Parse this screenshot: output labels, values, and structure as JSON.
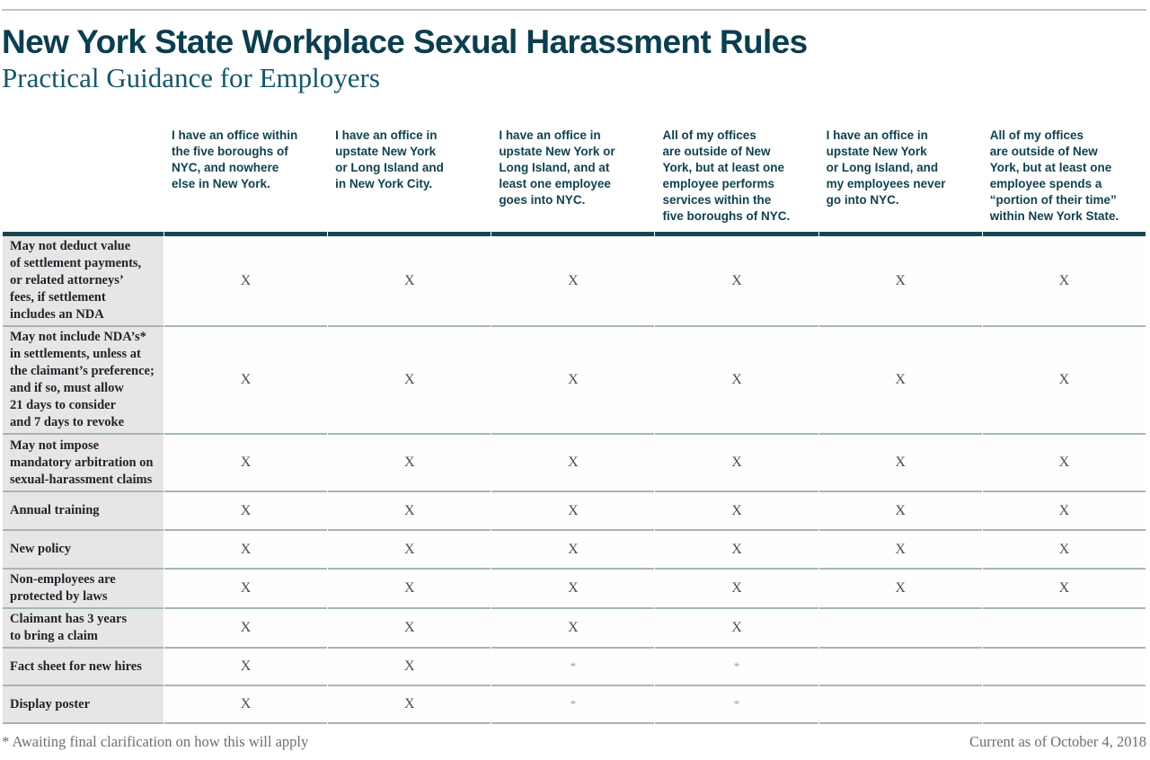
{
  "colors": {
    "teal_title": "#0b3e4e",
    "teal_subtitle": "#16566a",
    "teal_header": "#11414f",
    "teal_bar": "#174650",
    "label_text": "#22222c",
    "x_mark": "#4c4c54",
    "asterisk": "#9c9ca2",
    "row_line": "#a4b7b0",
    "label_bg": "#e7e6e6",
    "top_line": "#c4c4c4",
    "footnote": "#6f6f73"
  },
  "chart_data": {
    "type": "table",
    "title": "New York State Workplace Sexual Harassment Rules",
    "subtitle": "Practical Guidance for Employers",
    "columns": [
      "I have an office within\nthe five boroughs of\nNYC, and nowhere\nelse in New York.",
      "I have an office in\nupstate New York\nor Long Island and\nin New York City.",
      "I have an office in\nupstate New York or\nLong Island, and at\nleast one employee\ngoes into NYC.",
      "All of my offices\nare outside of New\nYork, but at least one\nemployee performs\nservices within the\nfive boroughs of NYC.",
      "I have an office in\nupstate New York\nor Long Island, and\nmy employees never\ngo into NYC.",
      "All of my offices\nare outside of New\nYork, but at least one\nemployee spends a\n“portion of their time”\nwithin New York State."
    ],
    "rows": [
      {
        "label": "May not deduct value\nof settlement payments,\nor related attorneys’\nfees, if settlement\nincludes an NDA",
        "values": [
          "X",
          "X",
          "X",
          "X",
          "X",
          "X"
        ]
      },
      {
        "label": "May not include NDA’s*\nin settlements, unless at\nthe claimant’s preference;\nand if so, must allow\n21 days to consider\nand 7 days to revoke",
        "values": [
          "X",
          "X",
          "X",
          "X",
          "X",
          "X"
        ]
      },
      {
        "label": "May not impose\nmandatory arbitration on\nsexual-harassment claims",
        "values": [
          "X",
          "X",
          "X",
          "X",
          "X",
          "X"
        ]
      },
      {
        "label": "Annual training",
        "values": [
          "X",
          "X",
          "X",
          "X",
          "X",
          "X"
        ]
      },
      {
        "label": "New policy",
        "values": [
          "X",
          "X",
          "X",
          "X",
          "X",
          "X"
        ]
      },
      {
        "label": "Non-employees are\nprotected by laws",
        "values": [
          "X",
          "X",
          "X",
          "X",
          "X",
          "X"
        ]
      },
      {
        "label": "Claimant has 3 years\nto bring a claim",
        "values": [
          "X",
          "X",
          "X",
          "X",
          "",
          ""
        ]
      },
      {
        "label": "Fact sheet for new hires",
        "values": [
          "X",
          "X",
          "*",
          "*",
          "",
          ""
        ]
      },
      {
        "label": "Display poster",
        "values": [
          "X",
          "X",
          "*",
          "*",
          "",
          ""
        ]
      }
    ],
    "footnote": "* Awaiting final clarification on how this will apply",
    "date_note": "Current as of October 4, 2018"
  }
}
